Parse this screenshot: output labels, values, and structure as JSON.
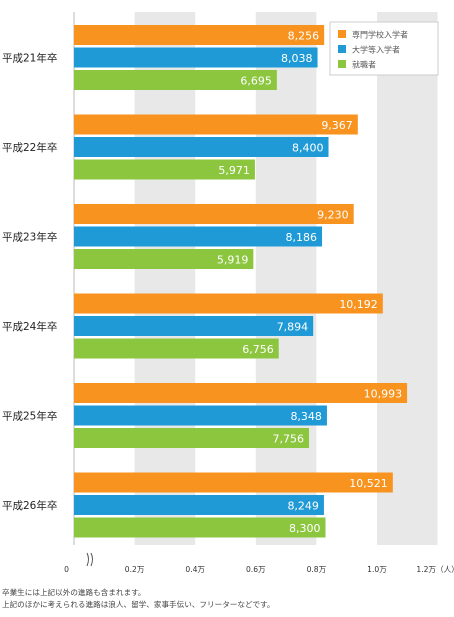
{
  "chart_data": {
    "type": "bar",
    "orientation": "horizontal",
    "categories": [
      "平成21年卒",
      "平成22年卒",
      "平成23年卒",
      "平成24年卒",
      "平成25年卒",
      "平成26年卒"
    ],
    "series": [
      {
        "name": "専門学校入学者",
        "color": "#f7931e",
        "values": [
          8256,
          9367,
          9230,
          10192,
          10993,
          10521
        ],
        "labels": [
          "8,256",
          "9,367",
          "9,230",
          "10,192",
          "10,993",
          "10,521"
        ]
      },
      {
        "name": "大学等入学者",
        "color": "#1f9ad6",
        "values": [
          8038,
          8400,
          8186,
          7894,
          8348,
          8249
        ],
        "labels": [
          "8,038",
          "8,400",
          "8,186",
          "7,894",
          "8,348",
          "8,249"
        ]
      },
      {
        "name": "就職者",
        "color": "#8cc63f",
        "values": [
          6695,
          5971,
          5919,
          6756,
          7756,
          8300
        ],
        "labels": [
          "6,695",
          "5,971",
          "5,919",
          "6,756",
          "7,756",
          "8,300"
        ]
      }
    ],
    "xlim": [
      0,
      12000
    ],
    "axis_break": true,
    "ticks": [
      {
        "value": 0,
        "label": "0"
      },
      {
        "value": 2000,
        "label": "0.2万"
      },
      {
        "value": 4000,
        "label": "0.4万"
      },
      {
        "value": 6000,
        "label": "0.6万"
      },
      {
        "value": 8000,
        "label": "0.8万"
      },
      {
        "value": 10000,
        "label": "1.0万"
      },
      {
        "value": 12000,
        "label": "1.2万（人）"
      }
    ],
    "grid_bands": true,
    "legend_position": "top-right"
  },
  "notes": [
    "卒業生には上記以外の進路も含まれます。",
    "上記のほかに考えられる進路は浪人、留学、家事手伝い、フリーターなどです。"
  ]
}
